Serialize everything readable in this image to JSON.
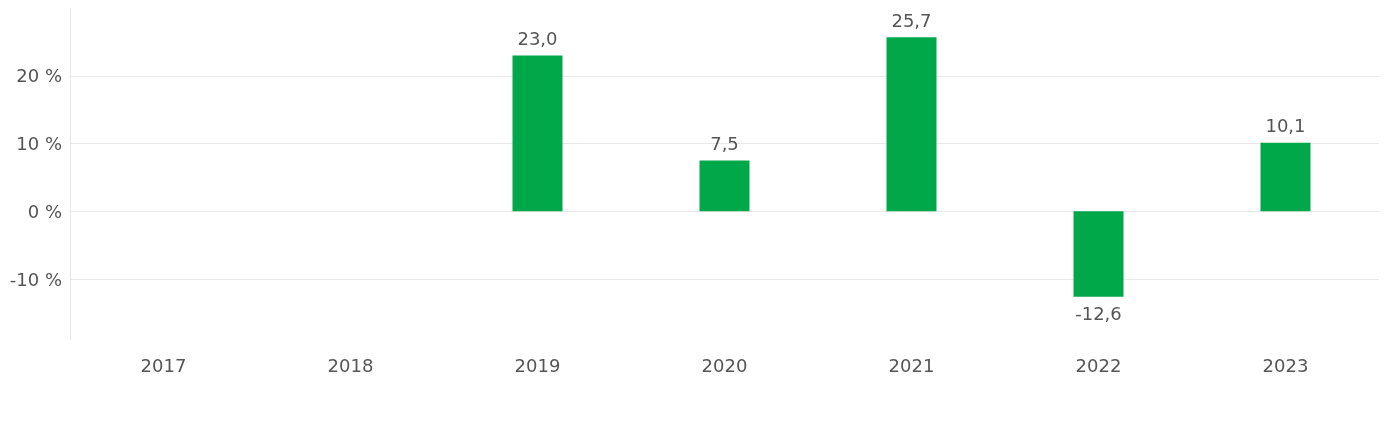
{
  "chart_data": {
    "type": "bar",
    "categories": [
      "2017",
      "2018",
      "2019",
      "2020",
      "2021",
      "2022",
      "2023"
    ],
    "values": [
      null,
      null,
      23.0,
      7.5,
      25.7,
      -12.6,
      10.1
    ],
    "value_labels": [
      null,
      null,
      "23,0",
      "7,5",
      "25,7",
      "-12,6",
      "10,1"
    ],
    "color": "#00a84a",
    "ylim": [
      -19,
      30
    ],
    "yticks": [
      {
        "value": -10,
        "label": "-10 %"
      },
      {
        "value": 0,
        "label": "0 %"
      },
      {
        "value": 10,
        "label": "10 %"
      },
      {
        "value": 20,
        "label": "20 %"
      }
    ],
    "grid": "y"
  }
}
